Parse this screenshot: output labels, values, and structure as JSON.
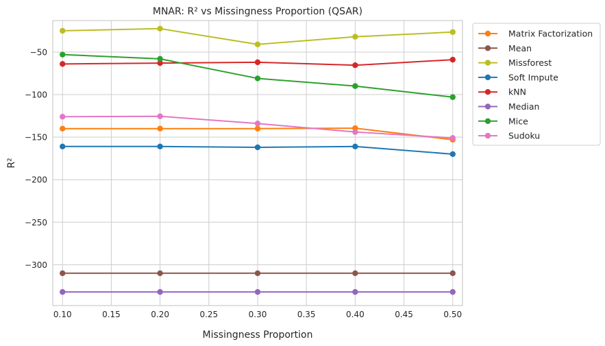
{
  "chart_data": {
    "type": "line",
    "title": "MNAR: R² vs Missingness Proportion (QSAR)",
    "xlabel": "Missingness Proportion",
    "ylabel": "R²",
    "xlim": [
      0.09,
      0.51
    ],
    "ylim": [
      -348,
      -13
    ],
    "x_ticks": [
      "0.10",
      "0.15",
      "0.20",
      "0.25",
      "0.30",
      "0.35",
      "0.40",
      "0.45",
      "0.50"
    ],
    "y_ticks": [
      "−50",
      "−100",
      "−150",
      "−200",
      "−250",
      "−300"
    ],
    "grid": true,
    "legend_position": "outside-top-right",
    "x": [
      0.1,
      0.2,
      0.3,
      0.4,
      0.5
    ],
    "series": [
      {
        "name": "Matrix Factorization",
        "color": "#ff7f0e",
        "values": [
          -140,
          -140,
          -140,
          -139.5,
          -153
        ]
      },
      {
        "name": "Mean",
        "color": "#8c564b",
        "values": [
          -310,
          -310,
          -310,
          -310,
          -310
        ]
      },
      {
        "name": "Missforest",
        "color": "#bcbd22",
        "values": [
          -25,
          -22.5,
          -41,
          -32,
          -26.5
        ]
      },
      {
        "name": "Soft Impute",
        "color": "#1f77b4",
        "values": [
          -161,
          -161,
          -162,
          -161,
          -170
        ]
      },
      {
        "name": "kNN",
        "color": "#d62728",
        "values": [
          -64,
          -63,
          -62,
          -65.5,
          -59
        ]
      },
      {
        "name": "Median",
        "color": "#9467bd",
        "values": [
          -332,
          -332,
          -332,
          -332,
          -332
        ]
      },
      {
        "name": "Mice",
        "color": "#2ca02c",
        "values": [
          -53,
          -58,
          -81,
          -90,
          -103
        ]
      },
      {
        "name": "Sudoku",
        "color": "#e377c2",
        "values": [
          -126,
          -125.5,
          -134,
          -144,
          -151
        ]
      }
    ]
  }
}
